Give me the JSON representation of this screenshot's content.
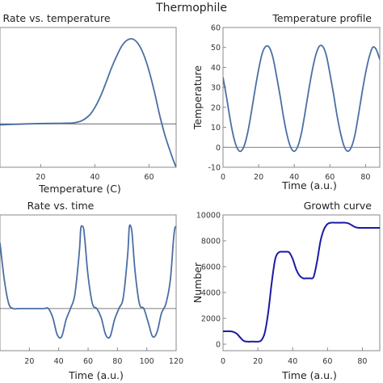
{
  "figure": {
    "title": "Thermophile"
  },
  "colors": {
    "curve": "#4a6fa5",
    "growth": "#1a1aa6",
    "axis": "#555555",
    "frame": "#888888"
  },
  "chart_data": [
    {
      "id": "rate_temp",
      "type": "line",
      "title": "Rate vs. temperature",
      "xlabel": "Temperature (C)",
      "ylabel": "",
      "xlim": [
        5,
        70
      ],
      "ylim": [
        -0.45,
        1.0
      ],
      "xticks": [
        20,
        40,
        60
      ],
      "yticks": [],
      "zero_line": 0,
      "series": [
        {
          "name": "",
          "x": [
            5,
            10,
            15,
            20,
            25,
            30,
            32,
            35,
            38,
            40,
            42,
            44,
            46,
            48,
            50,
            52,
            54,
            56,
            58,
            60,
            62,
            64,
            66,
            68,
            69,
            70
          ],
          "y": [
            -0.01,
            -0.005,
            0,
            0.003,
            0.005,
            0.008,
            0.01,
            0.03,
            0.09,
            0.17,
            0.28,
            0.42,
            0.57,
            0.7,
            0.81,
            0.87,
            0.88,
            0.83,
            0.72,
            0.55,
            0.33,
            0.08,
            -0.13,
            -0.3,
            -0.38,
            -0.45
          ]
        }
      ]
    },
    {
      "id": "temp_profile",
      "type": "line",
      "title": "Temperature profile",
      "xlabel": "Time (a.u.)",
      "ylabel": "Temperature",
      "xlim": [
        0,
        88
      ],
      "ylim": [
        -10,
        60
      ],
      "xticks": [
        0,
        20,
        40,
        60,
        80
      ],
      "yticks": [
        -10,
        0,
        10,
        20,
        30,
        40,
        50,
        60
      ],
      "zero_line": 0,
      "series": [
        {
          "name": "",
          "x": [
            0,
            2,
            4,
            6,
            8,
            10,
            12,
            14,
            16,
            18,
            20,
            22,
            24,
            26,
            28,
            30,
            32,
            34,
            36,
            38,
            40,
            42,
            44,
            46,
            48,
            50,
            52,
            54,
            56,
            58,
            60,
            62,
            64,
            66,
            68,
            70,
            72,
            74,
            76,
            78,
            80,
            82,
            84,
            86,
            88
          ],
          "y": [
            35,
            25,
            14,
            5,
            -0.5,
            -2,
            1,
            8,
            18,
            29,
            39,
            47,
            50.5,
            50,
            45,
            36,
            26,
            15,
            6,
            0,
            -2,
            0.5,
            7,
            17,
            28,
            38,
            46,
            50.5,
            50.5,
            46,
            37,
            27,
            16,
            7,
            0.5,
            -2,
            0,
            6,
            16,
            27,
            37,
            45,
            50,
            49,
            44
          ]
        }
      ]
    },
    {
      "id": "rate_time",
      "type": "line",
      "title": "Rate vs. time",
      "xlabel": "Time (a.u.)",
      "ylabel": "",
      "xlim": [
        0,
        120
      ],
      "ylim": [
        -0.45,
        1.0
      ],
      "xticks": [
        20,
        40,
        60,
        80,
        100,
        120
      ],
      "yticks": [],
      "zero_line": 0,
      "series": [
        {
          "name": "",
          "x": [
            0,
            3,
            6,
            9,
            12,
            15,
            18,
            21,
            24,
            27,
            30,
            33,
            36,
            39,
            42,
            45,
            48,
            51,
            54,
            55,
            56,
            57,
            58,
            60,
            63,
            66,
            69,
            72,
            75,
            78,
            81,
            84,
            87,
            88,
            89,
            90,
            92,
            95,
            98,
            101,
            104,
            107,
            110,
            113,
            116,
            118,
            119,
            120
          ],
          "y": [
            0.7,
            0.3,
            0.05,
            0.0,
            0.0,
            0.0,
            0.0,
            0.0,
            0.0,
            0.0,
            0.0,
            0.0,
            -0.1,
            -0.28,
            -0.3,
            -0.12,
            0.0,
            0.15,
            0.6,
            0.85,
            0.88,
            0.85,
            0.7,
            0.35,
            0.05,
            0.0,
            -0.1,
            -0.28,
            -0.3,
            -0.12,
            0.0,
            0.12,
            0.58,
            0.86,
            0.88,
            0.8,
            0.4,
            0.05,
            0.0,
            -0.15,
            -0.3,
            -0.25,
            -0.05,
            0.05,
            0.3,
            0.7,
            0.85,
            0.88
          ]
        }
      ]
    },
    {
      "id": "growth",
      "type": "line",
      "title": "Growth curve",
      "xlabel": "Time (a.u.)",
      "ylabel": "Number",
      "xlim": [
        0,
        90
      ],
      "ylim": [
        -500,
        10000
      ],
      "xticks": [
        0,
        20,
        40,
        60,
        80
      ],
      "yticks": [
        0,
        2000,
        4000,
        6000,
        8000,
        10000
      ],
      "zero_line": null,
      "series": [
        {
          "name": "",
          "x": [
            0,
            4,
            6,
            8,
            10,
            12,
            14,
            16,
            18,
            20,
            22,
            24,
            26,
            28,
            30,
            32,
            34,
            36,
            38,
            40,
            42,
            44,
            46,
            48,
            50,
            52,
            54,
            56,
            58,
            60,
            62,
            64,
            66,
            68,
            70,
            72,
            74,
            76,
            78,
            80,
            82,
            84,
            86,
            88,
            90
          ],
          "y": [
            1000,
            1000,
            950,
            800,
            500,
            250,
            200,
            200,
            200,
            200,
            300,
            900,
            2500,
            4800,
            6600,
            7100,
            7150,
            7150,
            7100,
            6600,
            5800,
            5300,
            5100,
            5100,
            5100,
            5200,
            6400,
            8000,
            8900,
            9300,
            9400,
            9400,
            9400,
            9400,
            9400,
            9350,
            9200,
            9050,
            9000,
            9000,
            9000,
            9000,
            9000,
            9000,
            9000
          ]
        }
      ]
    }
  ]
}
